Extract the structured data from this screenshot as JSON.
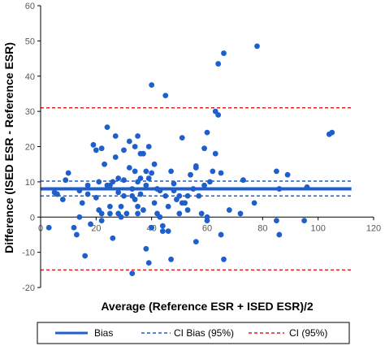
{
  "chart_data": {
    "type": "scatter",
    "title": "",
    "xlabel": "Average (Reference ESR + ISED ESR)/2",
    "ylabel": "Difference (ISED ESR - Reference ESR)",
    "xlim": [
      0,
      120
    ],
    "ylim": [
      -20,
      60
    ],
    "x_ticks": [
      0,
      20,
      40,
      60,
      80,
      100,
      120
    ],
    "y_ticks": [
      -20,
      -10,
      0,
      10,
      20,
      30,
      40,
      50,
      60
    ],
    "grid": false,
    "legend_position": "bottom",
    "colors": {
      "points": "#1F5FCC",
      "bias": "#1F5FCC",
      "ci_bias": "#1F5FCC",
      "ci": "#E02020"
    },
    "lines": [
      {
        "name": "Bias",
        "y": 8,
        "style": "solid"
      },
      {
        "name": "CI Bias (95%)",
        "y": 10.2,
        "style": "dashed"
      },
      {
        "name": "CI Bias (95%)",
        "y": 6.0,
        "style": "dashed"
      },
      {
        "name": "CI (95%)",
        "y": 31,
        "style": "dashed"
      },
      {
        "name": "CI (95%)",
        "y": -15,
        "style": "dashed"
      }
    ],
    "legend": [
      "Bias",
      "CI Bias (95%)",
      "CI (95%)"
    ],
    "points": [
      [
        3,
        -3
      ],
      [
        5,
        7
      ],
      [
        6,
        6.5
      ],
      [
        8,
        5
      ],
      [
        9,
        10.5
      ],
      [
        10,
        12.5
      ],
      [
        12,
        -3
      ],
      [
        13,
        -5
      ],
      [
        14,
        7.5
      ],
      [
        14,
        0
      ],
      [
        15,
        4
      ],
      [
        16,
        -11
      ],
      [
        17,
        9
      ],
      [
        17,
        6.5
      ],
      [
        18,
        -2
      ],
      [
        19,
        20.5
      ],
      [
        20,
        19
      ],
      [
        20,
        5.5
      ],
      [
        21,
        10
      ],
      [
        21,
        2
      ],
      [
        22,
        -1
      ],
      [
        22,
        19.5
      ],
      [
        22,
        1
      ],
      [
        23,
        15
      ],
      [
        24,
        25.5
      ],
      [
        24,
        9
      ],
      [
        25,
        9
      ],
      [
        25,
        3
      ],
      [
        25,
        1
      ],
      [
        26,
        10
      ],
      [
        26,
        -6
      ],
      [
        27,
        23
      ],
      [
        27,
        17
      ],
      [
        28,
        11
      ],
      [
        28,
        7
      ],
      [
        28,
        1
      ],
      [
        29,
        3
      ],
      [
        29,
        0
      ],
      [
        30,
        19
      ],
      [
        30,
        10.5
      ],
      [
        30,
        6
      ],
      [
        31,
        1
      ],
      [
        32,
        21.5
      ],
      [
        32,
        14
      ],
      [
        33,
        8
      ],
      [
        33,
        6
      ],
      [
        33,
        -16
      ],
      [
        34,
        20
      ],
      [
        34,
        13
      ],
      [
        34,
        5
      ],
      [
        35,
        23
      ],
      [
        35,
        10
      ],
      [
        35,
        3
      ],
      [
        35,
        1
      ],
      [
        36,
        18
      ],
      [
        36,
        11
      ],
      [
        36,
        6.5
      ],
      [
        37,
        18
      ],
      [
        37,
        2
      ],
      [
        38,
        13
      ],
      [
        38,
        -9
      ],
      [
        38,
        9
      ],
      [
        39,
        11
      ],
      [
        39,
        -13
      ],
      [
        39,
        20
      ],
      [
        40,
        37.5
      ],
      [
        40,
        -3
      ],
      [
        40,
        12.5
      ],
      [
        41,
        15
      ],
      [
        41,
        4
      ],
      [
        42,
        8
      ],
      [
        42,
        1
      ],
      [
        43,
        7.5
      ],
      [
        43,
        0
      ],
      [
        44,
        -4
      ],
      [
        44,
        -2.5
      ],
      [
        45,
        34.5
      ],
      [
        45,
        6
      ],
      [
        46,
        3
      ],
      [
        46,
        -4
      ],
      [
        47,
        13
      ],
      [
        47,
        -12
      ],
      [
        48,
        9.5
      ],
      [
        48,
        7.5
      ],
      [
        49,
        5
      ],
      [
        50,
        6
      ],
      [
        50,
        1
      ],
      [
        51,
        22.5
      ],
      [
        51,
        4
      ],
      [
        52,
        4
      ],
      [
        53,
        6
      ],
      [
        53,
        2
      ],
      [
        54,
        12
      ],
      [
        55,
        8
      ],
      [
        56,
        14.5
      ],
      [
        56,
        14
      ],
      [
        56,
        -7
      ],
      [
        57,
        6
      ],
      [
        58,
        1
      ],
      [
        59,
        19.5
      ],
      [
        59,
        9
      ],
      [
        60,
        24
      ],
      [
        60,
        0
      ],
      [
        60,
        -1
      ],
      [
        61,
        10
      ],
      [
        62,
        13
      ],
      [
        63,
        30
      ],
      [
        63,
        18
      ],
      [
        64,
        43.5
      ],
      [
        64,
        29
      ],
      [
        65,
        12.5
      ],
      [
        65,
        -5
      ],
      [
        66,
        -12
      ],
      [
        66,
        46.5
      ],
      [
        68,
        2
      ],
      [
        72,
        1
      ],
      [
        73,
        10.5
      ],
      [
        77,
        4
      ],
      [
        78,
        48.5
      ],
      [
        85,
        -1
      ],
      [
        85,
        13
      ],
      [
        86,
        -5
      ],
      [
        86,
        8
      ],
      [
        89,
        12
      ],
      [
        95,
        -1
      ],
      [
        96,
        8.5
      ],
      [
        104,
        23.5
      ],
      [
        105,
        24
      ]
    ]
  }
}
